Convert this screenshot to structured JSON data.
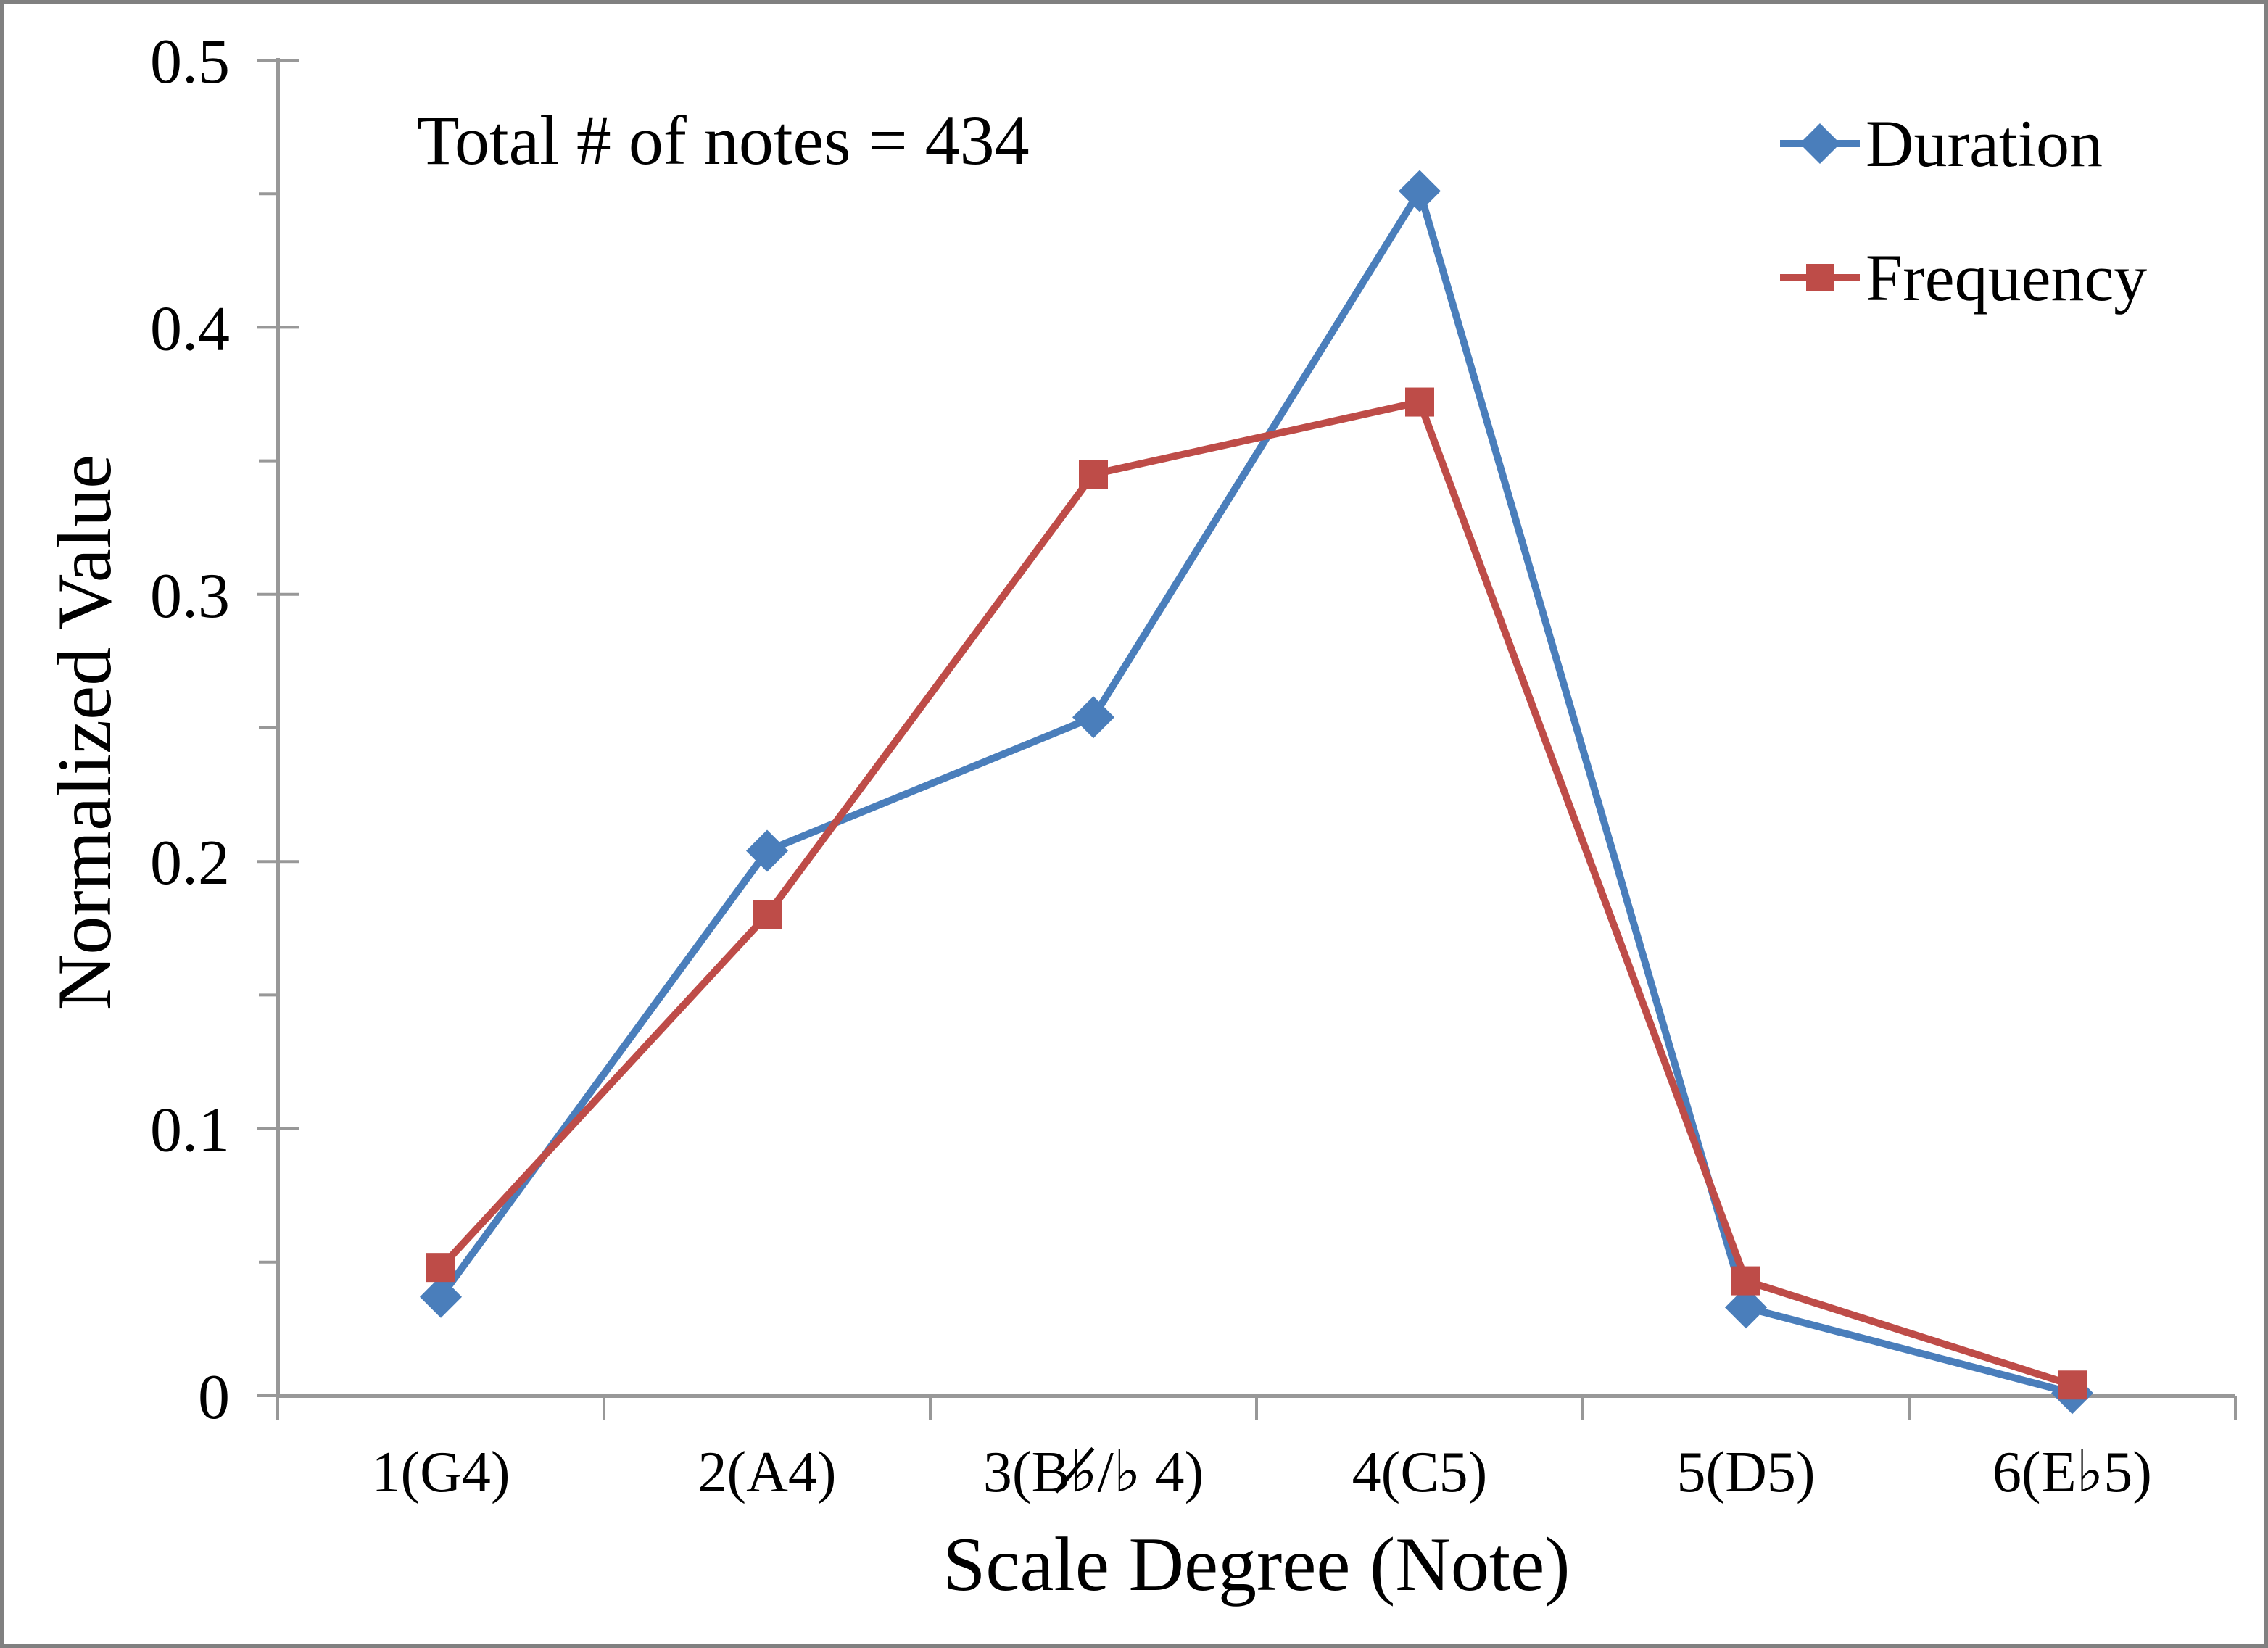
{
  "figure": {
    "annotation": "Total # of notes = 434",
    "border_color": "#808080",
    "background": "#FFFFFF"
  },
  "chart_data": {
    "type": "line",
    "title": "",
    "xlabel": "Scale Degree (Note)",
    "ylabel": "Normalized Value",
    "categories": [
      "1(G4)",
      "2(A4)",
      "3(B♭̸/♭ 4)",
      "4(C5)",
      "5(D5)",
      "6(E♭5)"
    ],
    "series": [
      {
        "name": "Duration",
        "color": "#4A7EBB",
        "marker": "diamond",
        "values": [
          0.037,
          0.204,
          0.254,
          0.451,
          0.033,
          0.001
        ]
      },
      {
        "name": "Frequency",
        "color": "#BE4C48",
        "marker": "square",
        "values": [
          0.048,
          0.18,
          0.345,
          0.372,
          0.043,
          0.004
        ]
      }
    ],
    "ylim": [
      0,
      0.5
    ],
    "yticks": [
      0,
      0.1,
      0.2,
      0.3,
      0.4,
      0.5
    ],
    "ytick_labels": [
      "0",
      "0.1",
      "0.2",
      "0.3",
      "0.4",
      "0.5"
    ],
    "minor_ytick_step": 0.05,
    "grid": false,
    "legend_position": "top-right",
    "axis_color": "#989898",
    "text_color": "#000000"
  }
}
